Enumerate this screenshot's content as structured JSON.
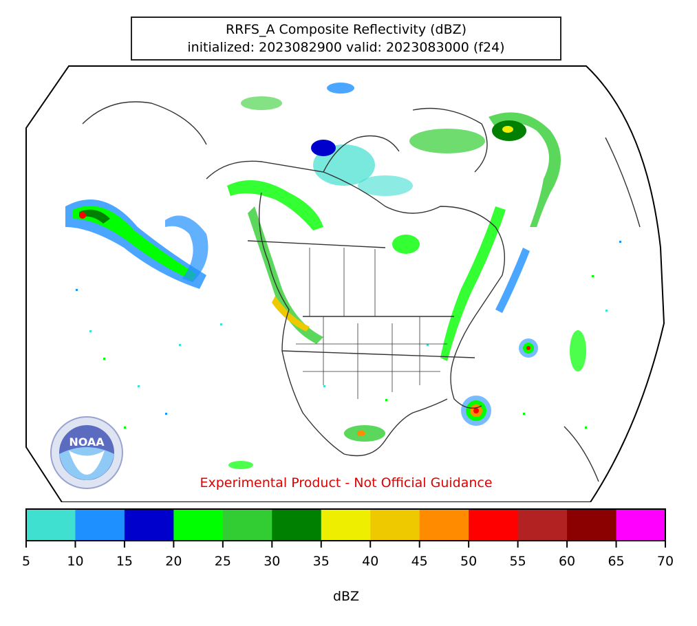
{
  "title": {
    "line1": "RRFS_A Composite Reflectivity (dBZ)",
    "line2": "initialized: 2023082900 valid: 2023083000 (f24)"
  },
  "disclaimer": "Experimental Product - Not Official Guidance",
  "logo": {
    "text": "NOAA",
    "icon": "noaa-logo"
  },
  "colorbar": {
    "label": "dBZ",
    "ticks": [
      "5",
      "10",
      "15",
      "20",
      "25",
      "30",
      "35",
      "40",
      "45",
      "50",
      "55",
      "60",
      "65",
      "70"
    ],
    "colors": [
      "#40e0d0",
      "#1e90ff",
      "#0000cd",
      "#00ff00",
      "#32cd32",
      "#008000",
      "#eeee00",
      "#eec900",
      "#ff8c00",
      "#ff0000",
      "#b22222",
      "#8b0000",
      "#ff00ff"
    ]
  }
}
